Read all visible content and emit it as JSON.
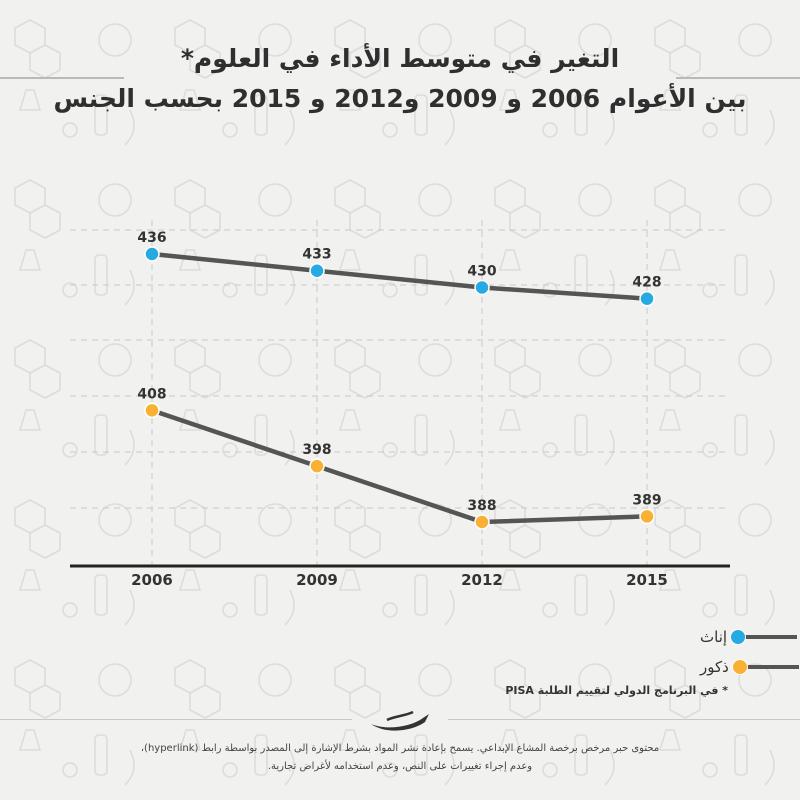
{
  "title_line1": "التغير في متوسط الأداء في العلوم*",
  "title_line2": "بين الأعوام 2006 و 2009 و2012 و 2015 بحسب الجنس",
  "chart_data": {
    "type": "line",
    "categories": [
      "2006",
      "2009",
      "2012",
      "2015"
    ],
    "series": [
      {
        "name": "إناث",
        "values": [
          436,
          433,
          430,
          428
        ],
        "color": "#27a9e1"
      },
      {
        "name": "ذكور",
        "values": [
          408,
          398,
          388,
          389
        ],
        "color": "#f8b133"
      }
    ],
    "ylim": [
      378,
      440
    ],
    "line_color": "#555555",
    "grid": true,
    "legend_position": "bottom-right"
  },
  "footnote": "* في البرنامج الدولي لتقييم الطلبة PISA",
  "credit_line1": "محتوى حبر مرخص برخصة المشاع الإبداعي. يسمح بإعادة نشر المواد بشرط الإشارة إلى المصدر بواسطة رابط (hyperlink)،",
  "credit_line2": "وعدم إجراء تغييرات على النص، وعدم استخدامه لأغراض تجارية.",
  "logo_icon": "hibr-logo-icon"
}
